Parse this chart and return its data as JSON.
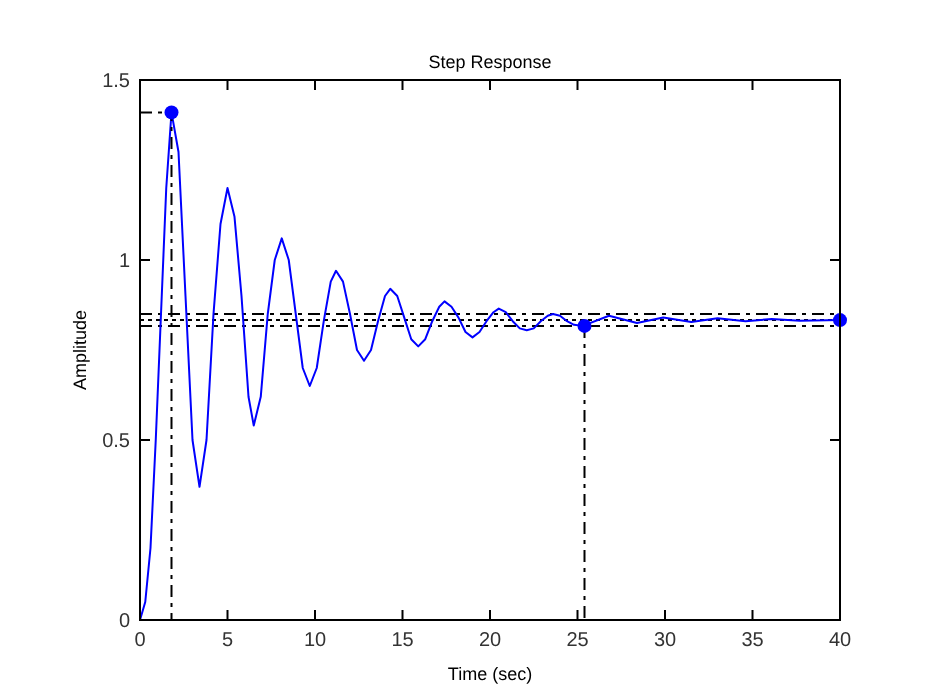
{
  "chart_data": {
    "type": "line",
    "title": "Step Response",
    "xlabel": "Time (sec)",
    "ylabel": "Amplitude",
    "xlim": [
      0,
      40
    ],
    "ylim": [
      0,
      1.5
    ],
    "xticks": [
      0,
      5,
      10,
      15,
      20,
      25,
      30,
      35,
      40
    ],
    "yticks": [
      0,
      0.5,
      1,
      1.5
    ],
    "grid": false,
    "series": [
      {
        "color": "#0000ff",
        "marker": "none",
        "line_style": "solid",
        "x": [
          0,
          0.3,
          0.6,
          0.9,
          1.2,
          1.5,
          1.8,
          2.2,
          2.6,
          3.0,
          3.4,
          3.8,
          4.2,
          4.6,
          5.0,
          5.4,
          5.8,
          6.2,
          6.5,
          6.9,
          7.3,
          7.7,
          8.1,
          8.5,
          8.9,
          9.3,
          9.7,
          10.1,
          10.5,
          10.9,
          11.2,
          11.6,
          12.0,
          12.4,
          12.8,
          13.2,
          13.6,
          14.0,
          14.3,
          14.7,
          15.1,
          15.5,
          15.9,
          16.3,
          16.7,
          17.1,
          17.4,
          17.8,
          18.2,
          18.6,
          19.0,
          19.4,
          19.8,
          20.2,
          20.5,
          20.9,
          21.3,
          21.7,
          22.1,
          22.5,
          22.9,
          23.3,
          23.6,
          24.0,
          24.4,
          24.8,
          25.3,
          26.8,
          28.4,
          29.9,
          31.5,
          33.0,
          34.6,
          36.1,
          37.7,
          40
        ],
        "values": [
          0,
          0.05,
          0.2,
          0.5,
          0.85,
          1.2,
          1.41,
          1.3,
          0.9,
          0.5,
          0.37,
          0.5,
          0.85,
          1.1,
          1.2,
          1.12,
          0.9,
          0.62,
          0.54,
          0.62,
          0.85,
          1.0,
          1.06,
          1.0,
          0.85,
          0.7,
          0.65,
          0.7,
          0.83,
          0.94,
          0.97,
          0.94,
          0.85,
          0.75,
          0.72,
          0.75,
          0.83,
          0.9,
          0.92,
          0.9,
          0.84,
          0.78,
          0.76,
          0.78,
          0.83,
          0.87,
          0.885,
          0.87,
          0.84,
          0.8,
          0.785,
          0.8,
          0.83,
          0.855,
          0.865,
          0.855,
          0.83,
          0.81,
          0.805,
          0.81,
          0.83,
          0.845,
          0.85,
          0.845,
          0.83,
          0.82,
          0.817,
          0.845,
          0.825,
          0.84,
          0.828,
          0.838,
          0.83,
          0.836,
          0.831,
          0.833
        ]
      },
      {
        "color": "#000000",
        "marker": "none",
        "line_style": "dashed",
        "x": [
          0,
          1.8,
          1.8
        ],
        "values": [
          1.41,
          1.41,
          0
        ]
      },
      {
        "color": "#000000",
        "marker": "none",
        "line_style": "dashed",
        "x": [
          25.4,
          25.4
        ],
        "values": [
          0.817,
          0
        ]
      },
      {
        "type": "scatter",
        "color": "#0000ff",
        "marker": "circle",
        "x": [
          1.8,
          25.4,
          40
        ],
        "values": [
          1.41,
          0.817,
          0.833
        ]
      }
    ],
    "ref_lines": [
      {
        "axis": "y",
        "value": 0.85,
        "color": "#000000",
        "line_style": "dashed"
      },
      {
        "axis": "y",
        "value": 0.833,
        "color": "#000000",
        "line_style": "dotted"
      },
      {
        "axis": "y",
        "value": 0.817,
        "color": "#000000",
        "line_style": "dashed"
      }
    ]
  }
}
